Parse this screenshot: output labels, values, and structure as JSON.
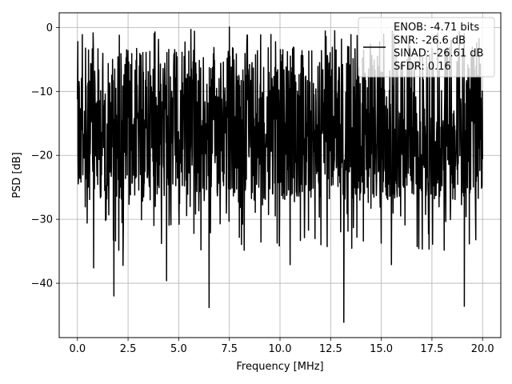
{
  "chart_data": {
    "type": "line",
    "xlabel": "Frequency [MHz]",
    "ylabel": "PSD [dB]",
    "xlim": [
      -0.9,
      20.9
    ],
    "ylim": [
      -48.5,
      2.3
    ],
    "x_ticks": [
      0.0,
      2.5,
      5.0,
      7.5,
      10.0,
      12.5,
      15.0,
      17.5,
      20.0
    ],
    "x_tick_labels": [
      "0.0",
      "2.5",
      "5.0",
      "7.5",
      "10.0",
      "12.5",
      "15.0",
      "17.5",
      "20.0"
    ],
    "y_ticks": [
      0,
      -10,
      -20,
      -30,
      -40
    ],
    "y_tick_labels": [
      "0",
      "−10",
      "−20",
      "−30",
      "−40"
    ],
    "grid": true,
    "legend_placement": "top-right",
    "color": "#000000",
    "x_range": [
      0.0,
      20.0
    ],
    "num_points": 1500,
    "series": [
      {
        "name": "ENOB: -4.71 bits\nSNR: -26.6 dB\nSINAD: -26.61 dB\nSFDR: 0.16",
        "summary": "dense noise-like PSD fluctuating roughly between -2 and -28 dB across 0-20 MHz",
        "typical_upper_db": -3.0,
        "typical_lower_db": -27.0,
        "max_db": 0.1,
        "notable_dips": [
          {
            "x": 1.8,
            "y": -42.0
          },
          {
            "x": 4.4,
            "y": -39.6
          },
          {
            "x": 6.5,
            "y": -43.8
          },
          {
            "x": 13.15,
            "y": -46.1
          },
          {
            "x": 19.1,
            "y": -43.6
          },
          {
            "x": 0.8,
            "y": -37.6
          },
          {
            "x": 2.25,
            "y": -37.2
          },
          {
            "x": 10.5,
            "y": -37.1
          },
          {
            "x": 15.5,
            "y": -37.1
          }
        ],
        "notable_peaks": [
          {
            "x": 0.02,
            "y": -2.2
          },
          {
            "x": 7.5,
            "y": 0.1
          },
          {
            "x": 5.6,
            "y": -0.3
          },
          {
            "x": 12.7,
            "y": -0.5
          }
        ]
      }
    ]
  }
}
